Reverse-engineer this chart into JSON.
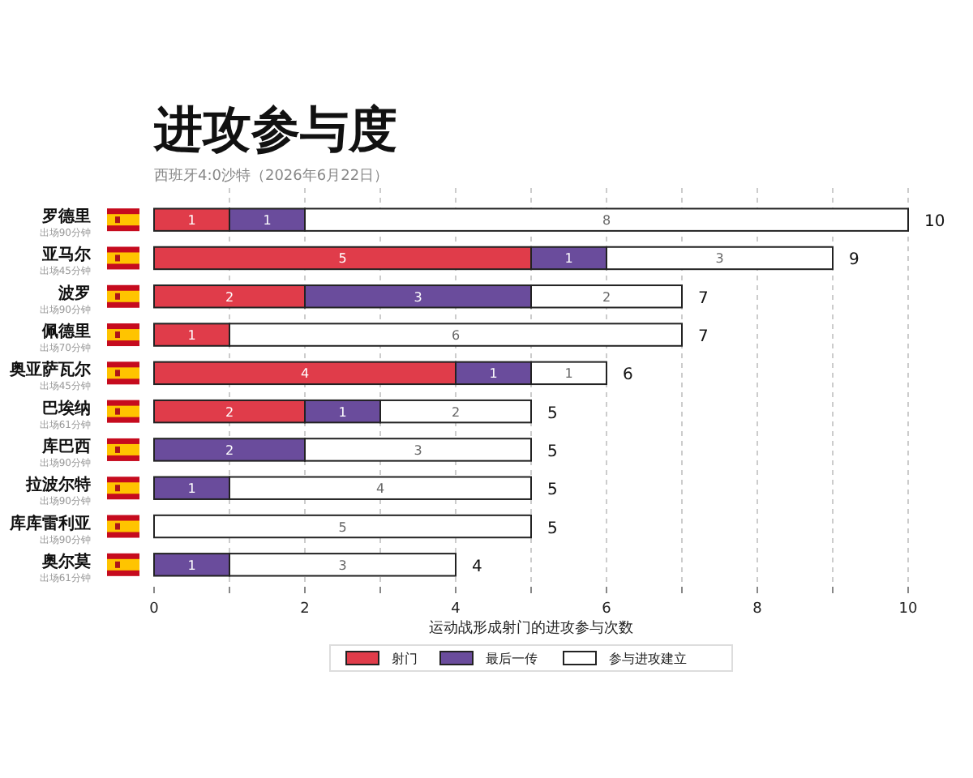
{
  "chart_data": {
    "type": "bar",
    "orientation": "horizontal",
    "stacked": true,
    "title": "进攻参与度",
    "subtitle": "西班牙4:0沙特（2026年6月22日）",
    "xlabel": "运动战形成射门的进攻参与次数",
    "categories": [
      "罗德里",
      "亚马尔",
      "波罗",
      "佩德里",
      "奥亚萨瓦尔",
      "巴埃纳",
      "库巴西",
      "拉波尔特",
      "库库雷利亚",
      "奥尔莫"
    ],
    "annotations": [
      "出场90分钟",
      "出场45分钟",
      "出场90分钟",
      "出场70分钟",
      "出场45分钟",
      "出场61分钟",
      "出场90分钟",
      "出场90分钟",
      "出场90分钟",
      "出场61分钟"
    ],
    "series": [
      {
        "name": "射门",
        "color": "#e03c4a",
        "values": [
          1,
          5,
          2,
          1,
          4,
          2,
          null,
          null,
          null,
          null
        ]
      },
      {
        "name": "最后一传",
        "color": "#6a4c9c",
        "values": [
          1,
          1,
          3,
          null,
          1,
          1,
          2,
          1,
          null,
          1
        ]
      },
      {
        "name": "参与进攻建立",
        "color": "#ffffff",
        "values": [
          8,
          3,
          2,
          6,
          1,
          2,
          3,
          4,
          5,
          3
        ]
      }
    ],
    "totals": [
      "10",
      "9",
      "7",
      "7",
      "6",
      "5",
      "5",
      "5",
      "5",
      "4"
    ],
    "data_labels": true,
    "xlim": [
      0,
      10
    ],
    "xticks": [
      0,
      {
        "value": 1,
        "label": null
      },
      2,
      {
        "value": 3,
        "label": null
      },
      4,
      {
        "value": 5,
        "label": null
      },
      6,
      {
        "value": 7,
        "label": null
      },
      8,
      {
        "value": 9,
        "label": null
      },
      10
    ],
    "grid": "x",
    "legend": "bottom"
  }
}
